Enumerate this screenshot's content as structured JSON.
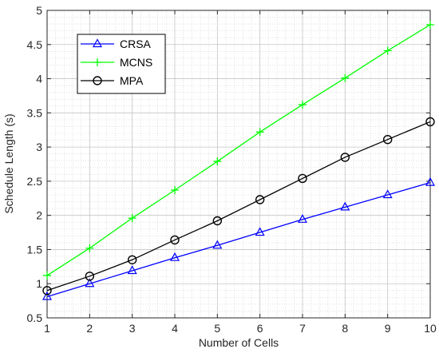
{
  "chart_data": {
    "type": "line",
    "title": "",
    "xlabel": "Number of Cells",
    "ylabel": "Schedule Length (s)",
    "xlim": [
      1,
      10
    ],
    "ylim": [
      0.5,
      5
    ],
    "xticks": [
      1,
      2,
      3,
      4,
      5,
      6,
      7,
      8,
      9,
      10
    ],
    "yticks": [
      0.5,
      1,
      1.5,
      2,
      2.5,
      3,
      3.5,
      4,
      4.5,
      5
    ],
    "ytick_labels": [
      "0.5",
      "1",
      "1.5",
      "2",
      "2.5",
      "3",
      "3.5",
      "4",
      "4.5",
      "5"
    ],
    "grid": true,
    "minor_grid": true,
    "legend_position": "top-left",
    "x": [
      1,
      2,
      3,
      4,
      5,
      6,
      7,
      8,
      9,
      10
    ],
    "series": [
      {
        "name": "CRSA",
        "color": "#0000ff",
        "marker": "triangle",
        "values": [
          0.81,
          1.0,
          1.19,
          1.38,
          1.56,
          1.75,
          1.94,
          2.12,
          2.3,
          2.48
        ]
      },
      {
        "name": "MCNS",
        "color": "#00ff00",
        "marker": "plus",
        "values": [
          1.12,
          1.52,
          1.96,
          2.37,
          2.79,
          3.22,
          3.62,
          4.01,
          4.41,
          4.79
        ]
      },
      {
        "name": "MPA",
        "color": "#000000",
        "marker": "circle",
        "values": [
          0.9,
          1.11,
          1.35,
          1.64,
          1.92,
          2.23,
          2.54,
          2.85,
          3.11,
          3.37
        ]
      }
    ]
  }
}
